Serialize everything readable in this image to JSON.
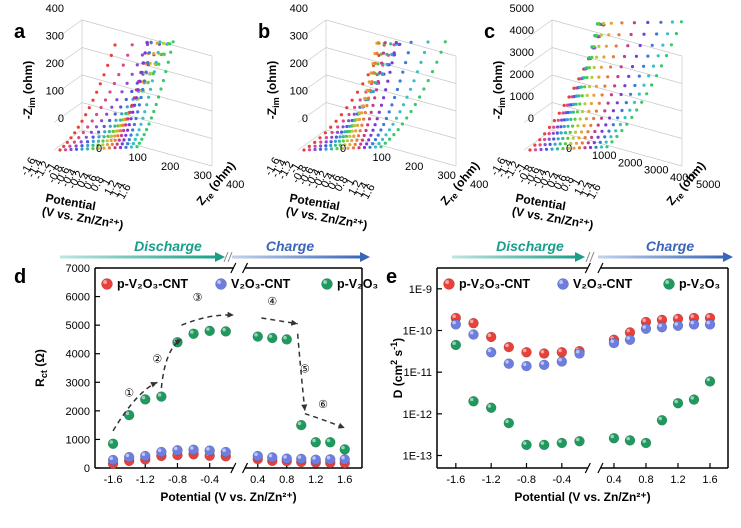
{
  "panel_letters": {
    "a": "a",
    "b": "b",
    "c": "c",
    "d": "d",
    "e": "e"
  },
  "colors": {
    "p-V2O3-CNT": "#e8413a",
    "V2O3-CNT": "#6d7ee0",
    "p-V2O3": "#1f9a5e",
    "discharge": "#1a9e8a",
    "charge": "#3a66b8"
  },
  "phase_headers": {
    "discharge": "Discharge",
    "charge": "Charge"
  },
  "eis_panels": [
    {
      "ylabel": "-Z",
      "ylabel_sub": "im",
      "ylabel_unit": " (ohm)",
      "ylim": [
        0,
        400
      ],
      "zticks": [
        "400",
        "300",
        "200",
        "100",
        "0"
      ],
      "re_ticks": [
        "400",
        "300",
        "200",
        "100",
        "0"
      ],
      "re_label": "Z",
      "re_sub": "re",
      "re_unit": " (ohm)",
      "pot_label": "Potential",
      "pot_sub": "(V vs. Zn/Zn²⁺)"
    },
    {
      "ylabel": "-Z",
      "ylabel_sub": "im",
      "ylabel_unit": " (ohm)",
      "ylim": [
        0,
        400
      ],
      "zticks": [
        "400",
        "300",
        "200",
        "100",
        "0"
      ],
      "re_ticks": [
        "400",
        "300",
        "200",
        "100",
        "0"
      ],
      "re_label": "Z",
      "re_sub": "re",
      "re_unit": " (ohm)",
      "pot_label": "Potential",
      "pot_sub": "(V vs. Zn/Zn²⁺)"
    },
    {
      "ylabel": "-Z",
      "ylabel_sub": "im",
      "ylabel_unit": " (ohm)",
      "ylim": [
        0,
        5000
      ],
      "zticks": [
        "5000",
        "4000",
        "3000",
        "2000",
        "1000",
        "0"
      ],
      "re_ticks": [
        "5000",
        "4000",
        "3000",
        "2000",
        "1000",
        "0"
      ],
      "re_label": "Z",
      "re_sub": "re",
      "re_unit": " (ohm)",
      "pot_label": "Potential",
      "pot_sub": "(V vs. Zn/Zn²⁺)"
    }
  ],
  "pot_ticks_eis": [
    "-1.6",
    "-1.4",
    "-1.2",
    "-1",
    "-0.8",
    "-0.6",
    "-0.4",
    "-0.2",
    "0.4",
    "0.6",
    "0.8",
    "1",
    "1.2",
    "1.4",
    "1.6"
  ],
  "chart_data": [
    {
      "panel": "d",
      "type": "scatter",
      "xlabel": "Potential (V vs. Zn/Zn²⁺)",
      "ylabel": "R",
      "ylabel_sub": "ct",
      "ylabel_unit": " (Ω)",
      "ylim": [
        0,
        7000
      ],
      "yticks": [
        "0",
        "1000",
        "2000",
        "3000",
        "4000",
        "5000",
        "6000",
        "7000"
      ],
      "xticks": [
        "-1.6",
        "-1.2",
        "-0.8",
        "-0.4",
        "0.4",
        "0.8",
        "1.2",
        "1.6"
      ],
      "x": [
        -1.6,
        -1.4,
        -1.2,
        -1.0,
        -0.8,
        -0.6,
        -0.4,
        -0.2,
        0.4,
        0.6,
        0.8,
        1.0,
        1.2,
        1.4,
        1.6
      ],
      "series": [
        {
          "name": "p-V₂O₃-CNT",
          "key": "p-V2O3-CNT",
          "values": [
            150,
            250,
            300,
            420,
            450,
            480,
            430,
            410,
            310,
            250,
            240,
            210,
            190,
            180,
            170
          ]
        },
        {
          "name": "V₂O₃-CNT",
          "key": "V2O3-CNT",
          "values": [
            280,
            380,
            420,
            560,
            620,
            640,
            610,
            560,
            420,
            370,
            330,
            320,
            290,
            300,
            300
          ]
        },
        {
          "name": "p-V₂O₃",
          "key": "p-V2O3",
          "values": [
            850,
            1850,
            2400,
            2500,
            4400,
            4700,
            4800,
            4780,
            4600,
            4550,
            4500,
            1500,
            900,
            900,
            650
          ]
        }
      ],
      "step_labels": [
        "①",
        "②",
        "③",
        "④",
        "⑤",
        "⑥"
      ],
      "legend": "top"
    },
    {
      "panel": "e",
      "type": "scatter",
      "xlabel": "Potential (V vs. Zn/Zn²⁺)",
      "ylabel": "D (cm",
      "ylabel_sup": "2",
      "ylabel_mid": " s",
      "ylabel_sup2": "-1",
      "ylabel_end": ")",
      "yscale": "log",
      "ylim_exp": [
        -13.3,
        -8.5
      ],
      "yticks": [
        "1E-13",
        "1E-12",
        "1E-11",
        "1E-10",
        "1E-9"
      ],
      "xticks": [
        "-1.6",
        "-1.2",
        "-0.8",
        "-0.4",
        "0.4",
        "0.8",
        "1.2",
        "1.6"
      ],
      "x": [
        -1.6,
        -1.4,
        -1.2,
        -1.0,
        -0.8,
        -0.6,
        -0.4,
        -0.2,
        0.4,
        0.6,
        0.8,
        1.0,
        1.2,
        1.4,
        1.6
      ],
      "series": [
        {
          "name": "p-V₂O₃-CNT",
          "key": "p-V2O3-CNT",
          "values": [
            2e-10,
            1.5e-10,
            7e-11,
            4e-11,
            3e-11,
            2.8e-11,
            3e-11,
            3.2e-11,
            6e-11,
            9e-11,
            1.6e-10,
            1.8e-10,
            1.9e-10,
            2e-10,
            2e-10
          ]
        },
        {
          "name": "V₂O₃-CNT",
          "key": "V2O3-CNT",
          "values": [
            1.4e-10,
            8e-11,
            3e-11,
            1.6e-11,
            1.4e-11,
            1.5e-11,
            1.8e-11,
            2.8e-11,
            5e-11,
            6e-11,
            1.1e-10,
            1.2e-10,
            1.3e-10,
            1.4e-10,
            1.4e-10
          ]
        },
        {
          "name": "p-V₂O₃",
          "key": "p-V2O3",
          "values": [
            4.5e-11,
            2e-12,
            1.4e-12,
            6e-13,
            1.8e-13,
            1.8e-13,
            2e-13,
            2.2e-13,
            2.6e-13,
            2.3e-13,
            2e-13,
            7e-13,
            1.8e-12,
            2.2e-12,
            6e-12
          ]
        }
      ],
      "legend": "top"
    }
  ]
}
